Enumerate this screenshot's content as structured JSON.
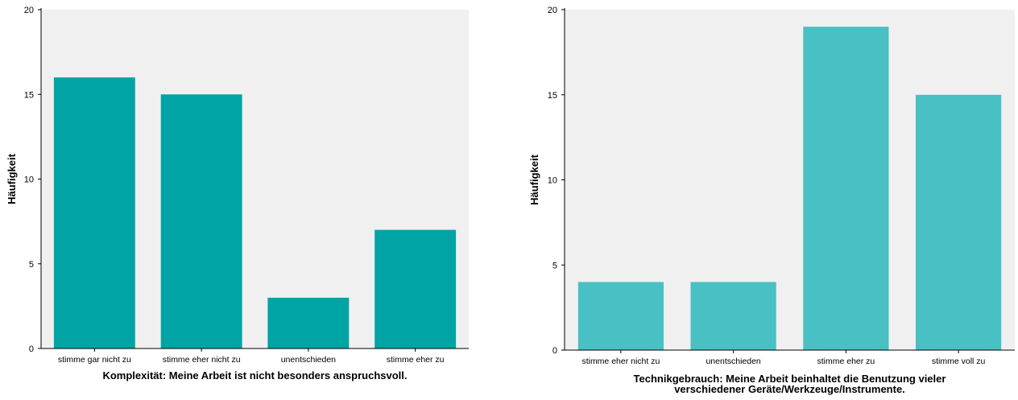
{
  "chart_data": [
    {
      "type": "bar",
      "categories": [
        "stimme gar nicht zu",
        "stimme eher nicht zu",
        "unentschieden",
        "stimme eher zu"
      ],
      "values": [
        16,
        15,
        3,
        7
      ],
      "title": "",
      "xlabel": [
        "Komplexität: Meine Arbeit ist nicht besonders anspruchsvoll."
      ],
      "ylabel": "Häufigkeit",
      "ylim": [
        0,
        20
      ],
      "yticks": [
        "0",
        "5",
        "10",
        "15",
        "20"
      ],
      "grid": false,
      "bar_color": "#00a4a4",
      "plot_background": "#f0f0f0"
    },
    {
      "type": "bar",
      "categories": [
        "stimme eher nicht zu",
        "unentschieden",
        "stimme eher zu",
        "stimme voll zu"
      ],
      "values": [
        4,
        4,
        19,
        15
      ],
      "title": "",
      "xlabel": [
        "Technikgebrauch: Meine Arbeit beinhaltet die Benutzung vieler",
        "verschiedener Geräte/Werkzeuge/Instrumente."
      ],
      "ylabel": "Häufigkeit",
      "ylim": [
        0,
        20
      ],
      "yticks": [
        "0",
        "5",
        "10",
        "15",
        "20"
      ],
      "grid": false,
      "bar_color": "#48c0c4",
      "plot_background": "#f0f0f0"
    }
  ]
}
